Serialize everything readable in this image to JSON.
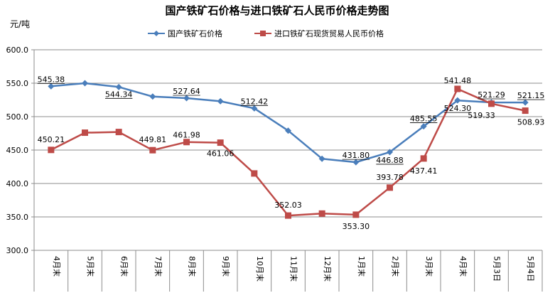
{
  "chart_data": {
    "type": "line",
    "title": "国产铁矿石价格与进口铁矿石人民币价格走势图",
    "ylabel": "元/吨",
    "ylim": [
      300,
      600
    ],
    "yticks": [
      "300.0",
      "350.0",
      "400.0",
      "450.0",
      "500.0",
      "550.0",
      "600.0"
    ],
    "ytick_values": [
      300,
      350,
      400,
      450,
      500,
      550,
      600
    ],
    "categories": [
      "4月末",
      "5月末",
      "6月末",
      "7月末",
      "8月末",
      "9月末",
      "10月末",
      "11月末",
      "12月末",
      "1月末",
      "2月末",
      "3月末",
      "4月末",
      "5月3日",
      "5月4日"
    ],
    "grid": true,
    "legend": "top",
    "series": [
      {
        "name": "国产铁矿石价格",
        "color": "#4A7EBB",
        "marker": "diamond",
        "values": [
          545.38,
          550,
          544.34,
          530,
          527.64,
          523,
          512.42,
          479,
          437,
          431.8,
          446.88,
          485.55,
          524.3,
          521.29,
          521.15
        ],
        "labels": [
          "545.38",
          "",
          "544.34",
          "",
          "527.64",
          "",
          "512.42",
          "",
          "",
          "431.80",
          "446.88",
          "485.55",
          "524.30",
          "521.29",
          "521.15"
        ]
      },
      {
        "name": "进口铁矿石现货贸易人民币价格",
        "color": "#BE4B48",
        "marker": "square",
        "values": [
          450.21,
          476,
          477,
          449.81,
          461.98,
          461.06,
          415,
          352.03,
          355,
          353.3,
          393.78,
          437.41,
          541.48,
          519.33,
          508.93
        ],
        "labels": [
          "450.21",
          "",
          "",
          "449.81",
          "461.98",
          "461.06",
          "",
          "352.03",
          "",
          "353.30",
          "393.78",
          "437.41",
          "541.48",
          "519.33",
          "508.93"
        ]
      }
    ]
  }
}
